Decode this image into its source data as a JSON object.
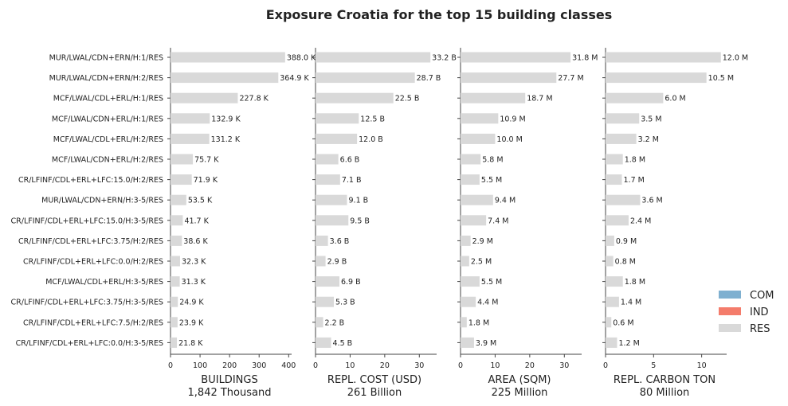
{
  "chart_data": {
    "type": "bar",
    "orientation": "horizontal",
    "title": "Exposure Croatia for the top 15 building classes",
    "categories": [
      "MUR/LWAL/CDN+ERN/H:1/RES",
      "MUR/LWAL/CDN+ERN/H:2/RES",
      "MCF/LWAL/CDL+ERL/H:1/RES",
      "MCF/LWAL/CDN+ERL/H:1/RES",
      "MCF/LWAL/CDL+ERL/H:2/RES",
      "MCF/LWAL/CDN+ERL/H:2/RES",
      "CR/LFINF/CDL+ERL+LFC:15.0/H:2/RES",
      "MUR/LWAL/CDN+ERN/H:3-5/RES",
      "CR/LFINF/CDL+ERL+LFC:15.0/H:3-5/RES",
      "CR/LFINF/CDL+ERL+LFC:3.75/H:2/RES",
      "CR/LFINF/CDL+ERL+LFC:0.0/H:2/RES",
      "MCF/LWAL/CDL+ERL/H:3-5/RES",
      "CR/LFINF/CDL+ERL+LFC:3.75/H:3-5/RES",
      "CR/LFINF/CDL+ERL+LFC:7.5/H:2/RES",
      "CR/LFINF/CDL+ERL+LFC:0.0/H:3-5/RES"
    ],
    "panels": [
      {
        "xlabel": "BUILDINGS",
        "total": "1,842 Thousand",
        "xlim": [
          0,
          410
        ],
        "ticks": [
          0,
          100,
          200,
          300,
          400
        ],
        "tick_labels": [
          "0",
          "100",
          "200",
          "300",
          "400"
        ],
        "values": [
          388.0,
          364.9,
          227.8,
          132.9,
          131.2,
          75.7,
          71.9,
          53.5,
          41.7,
          38.6,
          32.3,
          31.3,
          24.9,
          23.9,
          21.8
        ],
        "labels": [
          "388.0 K",
          "364.9 K",
          "227.8 K",
          "132.9 K",
          "131.2 K",
          "75.7 K",
          "71.9 K",
          "53.5 K",
          "41.7 K",
          "38.6 K",
          "32.3 K",
          "31.3 K",
          "24.9 K",
          "23.9 K",
          "21.8 K"
        ]
      },
      {
        "xlabel": "REPL. COST (USD)",
        "total": "261 Billion",
        "xlim": [
          0,
          35
        ],
        "ticks": [
          0,
          10,
          20,
          30
        ],
        "tick_labels": [
          "0",
          "10",
          "20",
          "30"
        ],
        "values": [
          33.2,
          28.7,
          22.5,
          12.5,
          12.0,
          6.6,
          7.1,
          9.1,
          9.5,
          3.6,
          2.9,
          6.9,
          5.3,
          2.2,
          4.5
        ],
        "labels": [
          "33.2 B",
          "28.7 B",
          "22.5 B",
          "12.5 B",
          "12.0 B",
          "6.6 B",
          "7.1 B",
          "9.1 B",
          "9.5 B",
          "3.6 B",
          "2.9 B",
          "6.9 B",
          "5.3 B",
          "2.2 B",
          "4.5 B"
        ]
      },
      {
        "xlabel": "AREA (SQM)",
        "total": "225 Million",
        "xlim": [
          0,
          35
        ],
        "ticks": [
          0,
          10,
          20,
          30
        ],
        "tick_labels": [
          "0",
          "10",
          "20",
          "30"
        ],
        "values": [
          31.8,
          27.7,
          18.7,
          10.9,
          10.0,
          5.8,
          5.5,
          9.4,
          7.4,
          2.9,
          2.5,
          5.5,
          4.4,
          1.8,
          3.9
        ],
        "labels": [
          "31.8 M",
          "27.7 M",
          "18.7 M",
          "10.9 M",
          "10.0 M",
          "5.8 M",
          "5.5 M",
          "9.4 M",
          "7.4 M",
          "2.9 M",
          "2.5 M",
          "5.5 M",
          "4.4 M",
          "1.8 M",
          "3.9 M"
        ]
      },
      {
        "xlabel": "REPL. CARBON TON",
        "total": "80 Million",
        "xlim": [
          0,
          12.6
        ],
        "ticks": [
          0,
          5,
          10
        ],
        "tick_labels": [
          "0",
          "5",
          "10"
        ],
        "values": [
          12.0,
          10.5,
          6.0,
          3.5,
          3.2,
          1.8,
          1.7,
          3.6,
          2.4,
          0.9,
          0.8,
          1.8,
          1.4,
          0.6,
          1.2
        ],
        "labels": [
          "12.0 M",
          "10.5 M",
          "6.0 M",
          "3.5 M",
          "3.2 M",
          "1.8 M",
          "1.7 M",
          "3.6 M",
          "2.4 M",
          "0.9 M",
          "0.8 M",
          "1.8 M",
          "1.4 M",
          "0.6 M",
          "1.2 M"
        ]
      }
    ],
    "legend": {
      "placement": "lower-right",
      "entries": [
        {
          "name": "COM",
          "color": "#7fb0d0"
        },
        {
          "name": "IND",
          "color": "#f47c6b"
        },
        {
          "name": "RES",
          "color": "#d9d9d9"
        }
      ]
    },
    "bar_color": "#d9d9d9",
    "grid": false
  }
}
